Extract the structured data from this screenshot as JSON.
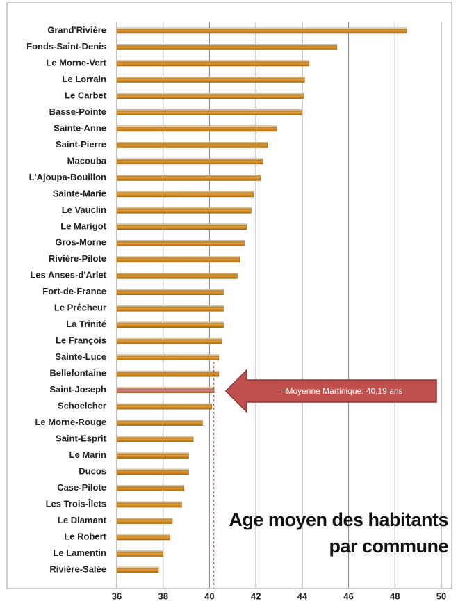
{
  "chart_data": {
    "type": "barh",
    "title": "Age moyen des habitants par commune",
    "categories": [
      "Grand'Rivière",
      "Fonds-Saint-Denis",
      "Le Morne-Vert",
      "Le Lorrain",
      "Le Carbet",
      "Basse-Pointe",
      "Sainte-Anne",
      "Saint-Pierre",
      "Macouba",
      "L'Ajoupa-Bouillon",
      "Sainte-Marie",
      "Le Vauclin",
      "Le Marigot",
      "Gros-Morne",
      "Rivière-Pilote",
      "Les Anses-d'Arlet",
      "Fort-de-France",
      "Le Prêcheur",
      "La Trinité",
      "Le François",
      "Sainte-Luce",
      "Bellefontaine",
      "Saint-Joseph",
      "Schoelcher",
      "Le Morne-Rouge",
      "Saint-Esprit",
      "Le Marin",
      "Ducos",
      "Case-Pilote",
      "Les Trois-Îlets",
      "Le Diamant",
      "Le Robert",
      "Le Lamentin",
      "Rivière-Salée"
    ],
    "values": [
      48.5,
      45.5,
      44.3,
      44.1,
      44.05,
      44.0,
      42.9,
      42.5,
      42.3,
      42.2,
      41.9,
      41.8,
      41.6,
      41.5,
      41.3,
      41.2,
      40.6,
      40.6,
      40.6,
      40.55,
      40.4,
      40.4,
      40.2,
      40.1,
      39.7,
      39.3,
      39.1,
      39.1,
      38.9,
      38.8,
      38.4,
      38.3,
      38.0,
      37.8
    ],
    "colors": [
      "#f0a030",
      "#f0a030",
      "#f0a030",
      "#f0a030",
      "#f0a030",
      "#f0a030",
      "#f0a030",
      "#f0a030",
      "#f0a030",
      "#f0a030",
      "#f0a030",
      "#f0a030",
      "#f0a030",
      "#f0a030",
      "#f0a030",
      "#f0a030",
      "#f0a030",
      "#f0a030",
      "#f0a030",
      "#f0a030",
      "#f0a030",
      "#f0a030",
      "#e98a8a",
      "#f0a030",
      "#f0a030",
      "#f0a030",
      "#f0a030",
      "#f0a030",
      "#f0a030",
      "#f0a030",
      "#f0a030",
      "#f0a030",
      "#f0a030",
      "#f0a030"
    ],
    "xlim": [
      36,
      50
    ],
    "xticks": [
      36,
      38,
      40,
      42,
      44,
      46,
      48,
      50
    ],
    "grid": true,
    "reference_line": {
      "value": 40.19,
      "label": "=Moyenne Martinique: 40,19 ans"
    }
  }
}
